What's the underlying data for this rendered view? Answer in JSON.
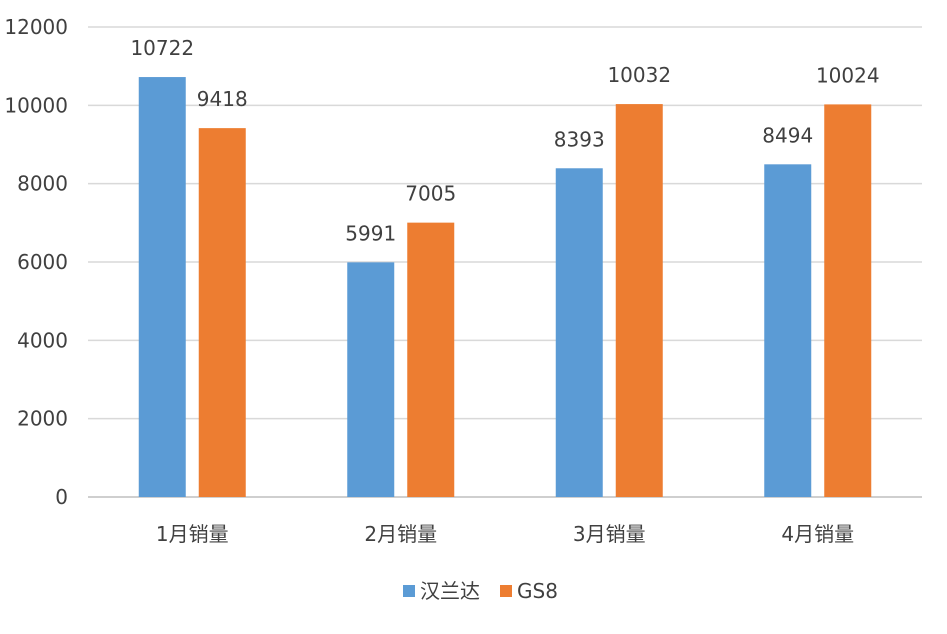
{
  "chart_data": {
    "type": "bar",
    "categories": [
      "1月销量",
      "2月销量",
      "3月销量",
      "4月销量"
    ],
    "series": [
      {
        "name": "汉兰达",
        "values": [
          10722,
          5991,
          8393,
          8494
        ],
        "color": "#5B9BD5"
      },
      {
        "name": "GS8",
        "values": [
          9418,
          7005,
          10032,
          10024
        ],
        "color": "#ED7D31"
      }
    ],
    "yticks": [
      0,
      2000,
      4000,
      6000,
      8000,
      10000,
      12000
    ],
    "ylim": [
      0,
      12000
    ],
    "grid": true,
    "legend_position": "bottom",
    "data_labels": true
  },
  "colors": {
    "gridline": "#d9d9d9",
    "axis": "#bfbfbf",
    "text": "#404040"
  }
}
